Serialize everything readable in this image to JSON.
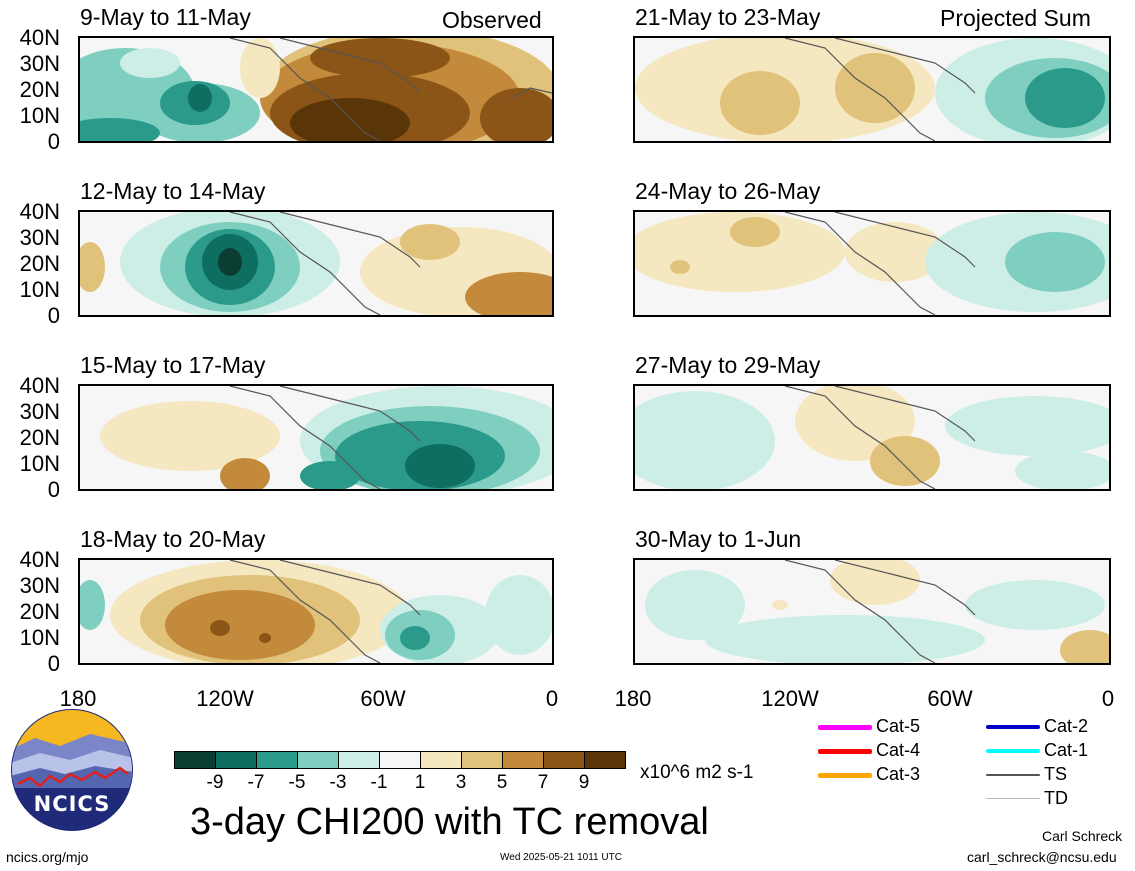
{
  "panels": {
    "p1": {
      "title": "9-May to 11-May",
      "tag": "Observed"
    },
    "p2": {
      "title": "12-May to 14-May"
    },
    "p3": {
      "title": "15-May to 17-May"
    },
    "p4": {
      "title": "18-May to 20-May"
    },
    "p5": {
      "title": "21-May to 23-May",
      "tag": "Projected Sum"
    },
    "p6": {
      "title": "24-May to 26-May"
    },
    "p7": {
      "title": "27-May to 29-May"
    },
    "p8": {
      "title": "30-May to 1-Jun"
    }
  },
  "axes": {
    "lat_labels": [
      "40N",
      "30N",
      "20N",
      "10N",
      "0"
    ],
    "lon_labels": [
      "180",
      "120W",
      "60W",
      "0"
    ]
  },
  "colorbar": {
    "labels": [
      "-9",
      "-7",
      "-5",
      "-3",
      "-1",
      "1",
      "3",
      "5",
      "7",
      "9"
    ],
    "colors": [
      "#0b3d33",
      "#0f6e62",
      "#2b9a8a",
      "#7fcfc0",
      "#cdeee6",
      "#f6f6f6",
      "#f5e7bf",
      "#e1c27a",
      "#c28a3a",
      "#8a5516",
      "#5a3508"
    ],
    "units": "x10^6 m2 s-1"
  },
  "title": "3-day CHI200 with TC removal",
  "legend": {
    "cat5": "Cat-5",
    "cat4": "Cat-4",
    "cat3": "Cat-3",
    "cat2": "Cat-2",
    "cat1": "Cat-1",
    "ts": "TS",
    "td": "TD",
    "colors": {
      "cat5": "#ff00ff",
      "cat4": "#ff0000",
      "cat3": "#ffa500",
      "cat2": "#0000cc",
      "cat1": "#00ffff",
      "ts": "#555555",
      "td": "#bbbbbb"
    }
  },
  "logo": {
    "text": "NCICS"
  },
  "footer": {
    "url": "ncics.org/mjo",
    "timestamp": "Wed 2025-05-21 1011 UTC",
    "author": "Carl Schreck",
    "email": "carl_schreck@ncsu.edu"
  }
}
